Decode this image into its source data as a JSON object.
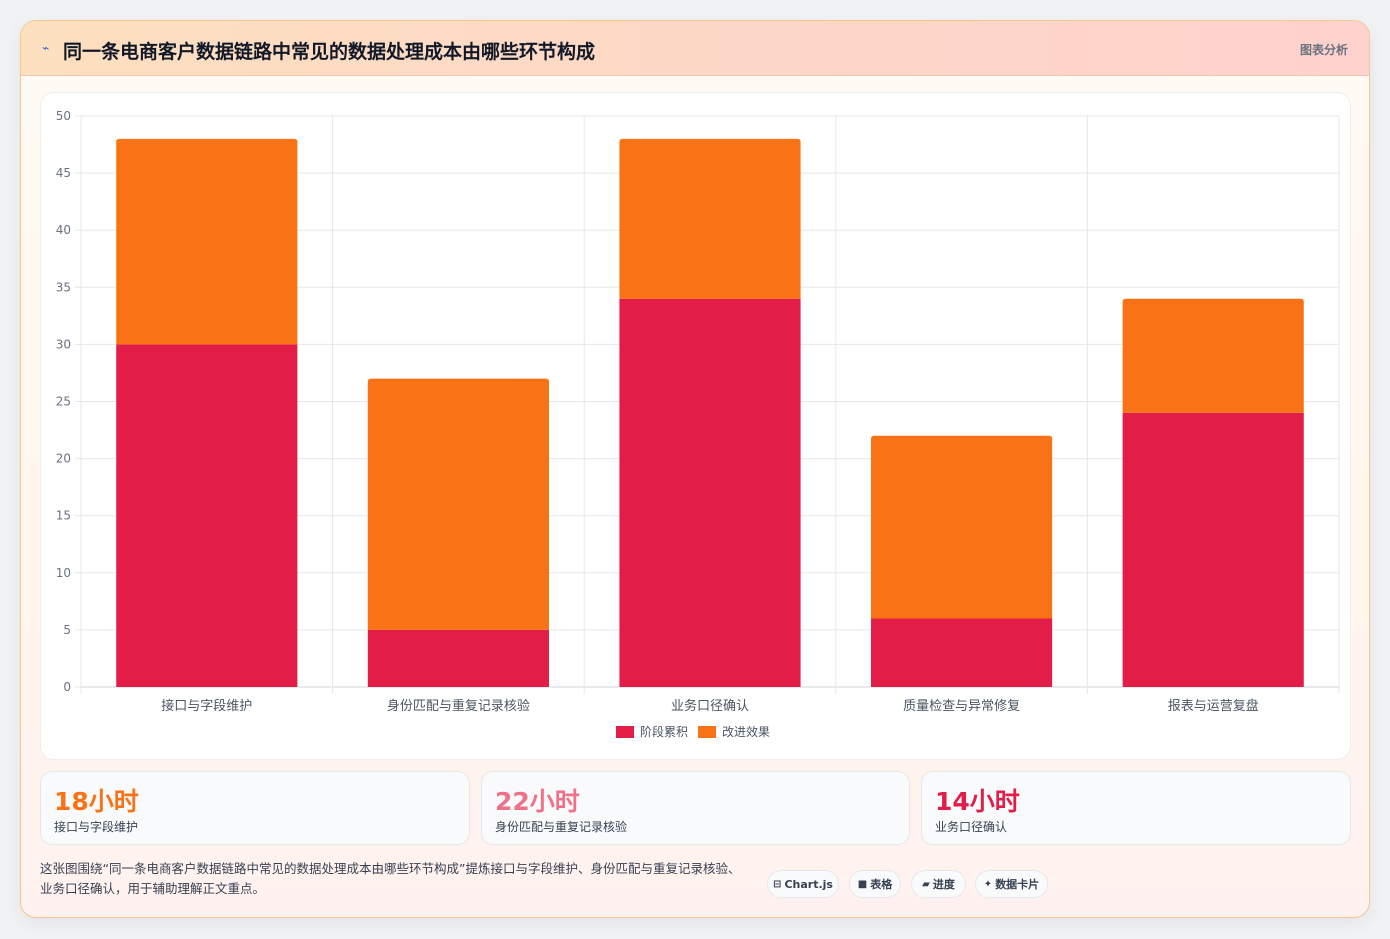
{
  "header": {
    "icon": "lightning-icon",
    "title": "同一条电商客户数据链路中常见的数据处理成本由哪些环节构成",
    "tag": "图表分析"
  },
  "chart_data": {
    "type": "bar",
    "stacked": true,
    "categories": [
      "接口与字段维护",
      "身份匹配与重复记录核验",
      "业务口径确认",
      "质量检查与异常修复",
      "报表与运营复盘"
    ],
    "series": [
      {
        "name": "阶段累积",
        "color": "#e11d48",
        "values": [
          30,
          5,
          34,
          6,
          24
        ]
      },
      {
        "name": "改进效果",
        "color": "#f97316",
        "values": [
          18,
          22,
          14,
          16,
          10
        ]
      }
    ],
    "ylim": [
      0,
      50
    ],
    "yticks": [
      0,
      5,
      10,
      15,
      20,
      25,
      30,
      35,
      40,
      45,
      50
    ],
    "grid": true,
    "legend": "bottom"
  },
  "kpis": [
    {
      "value": "18小时",
      "label": "接口与字段维护",
      "color": "#f97316"
    },
    {
      "value": "22小时",
      "label": "身份匹配与重复记录核验",
      "color": "#f07087"
    },
    {
      "value": "14小时",
      "label": "业务口径确认",
      "color": "#e11d48"
    }
  ],
  "summary": "这张图围绕“同一条电商客户数据链路中常见的数据处理成本由哪些环节构成”提炼接口与字段维护、身份匹配与重复记录核验、业务口径确认，用于辅助理解正文重点。",
  "chips": [
    {
      "icon": "chart-icon",
      "glyph": "⊟",
      "label": "Chart.js"
    },
    {
      "icon": "table-icon",
      "glyph": "■",
      "label": "表格"
    },
    {
      "icon": "progress-icon",
      "glyph": "▰",
      "label": "进度"
    },
    {
      "icon": "card-icon",
      "glyph": "✦",
      "label": "数据卡片"
    }
  ]
}
